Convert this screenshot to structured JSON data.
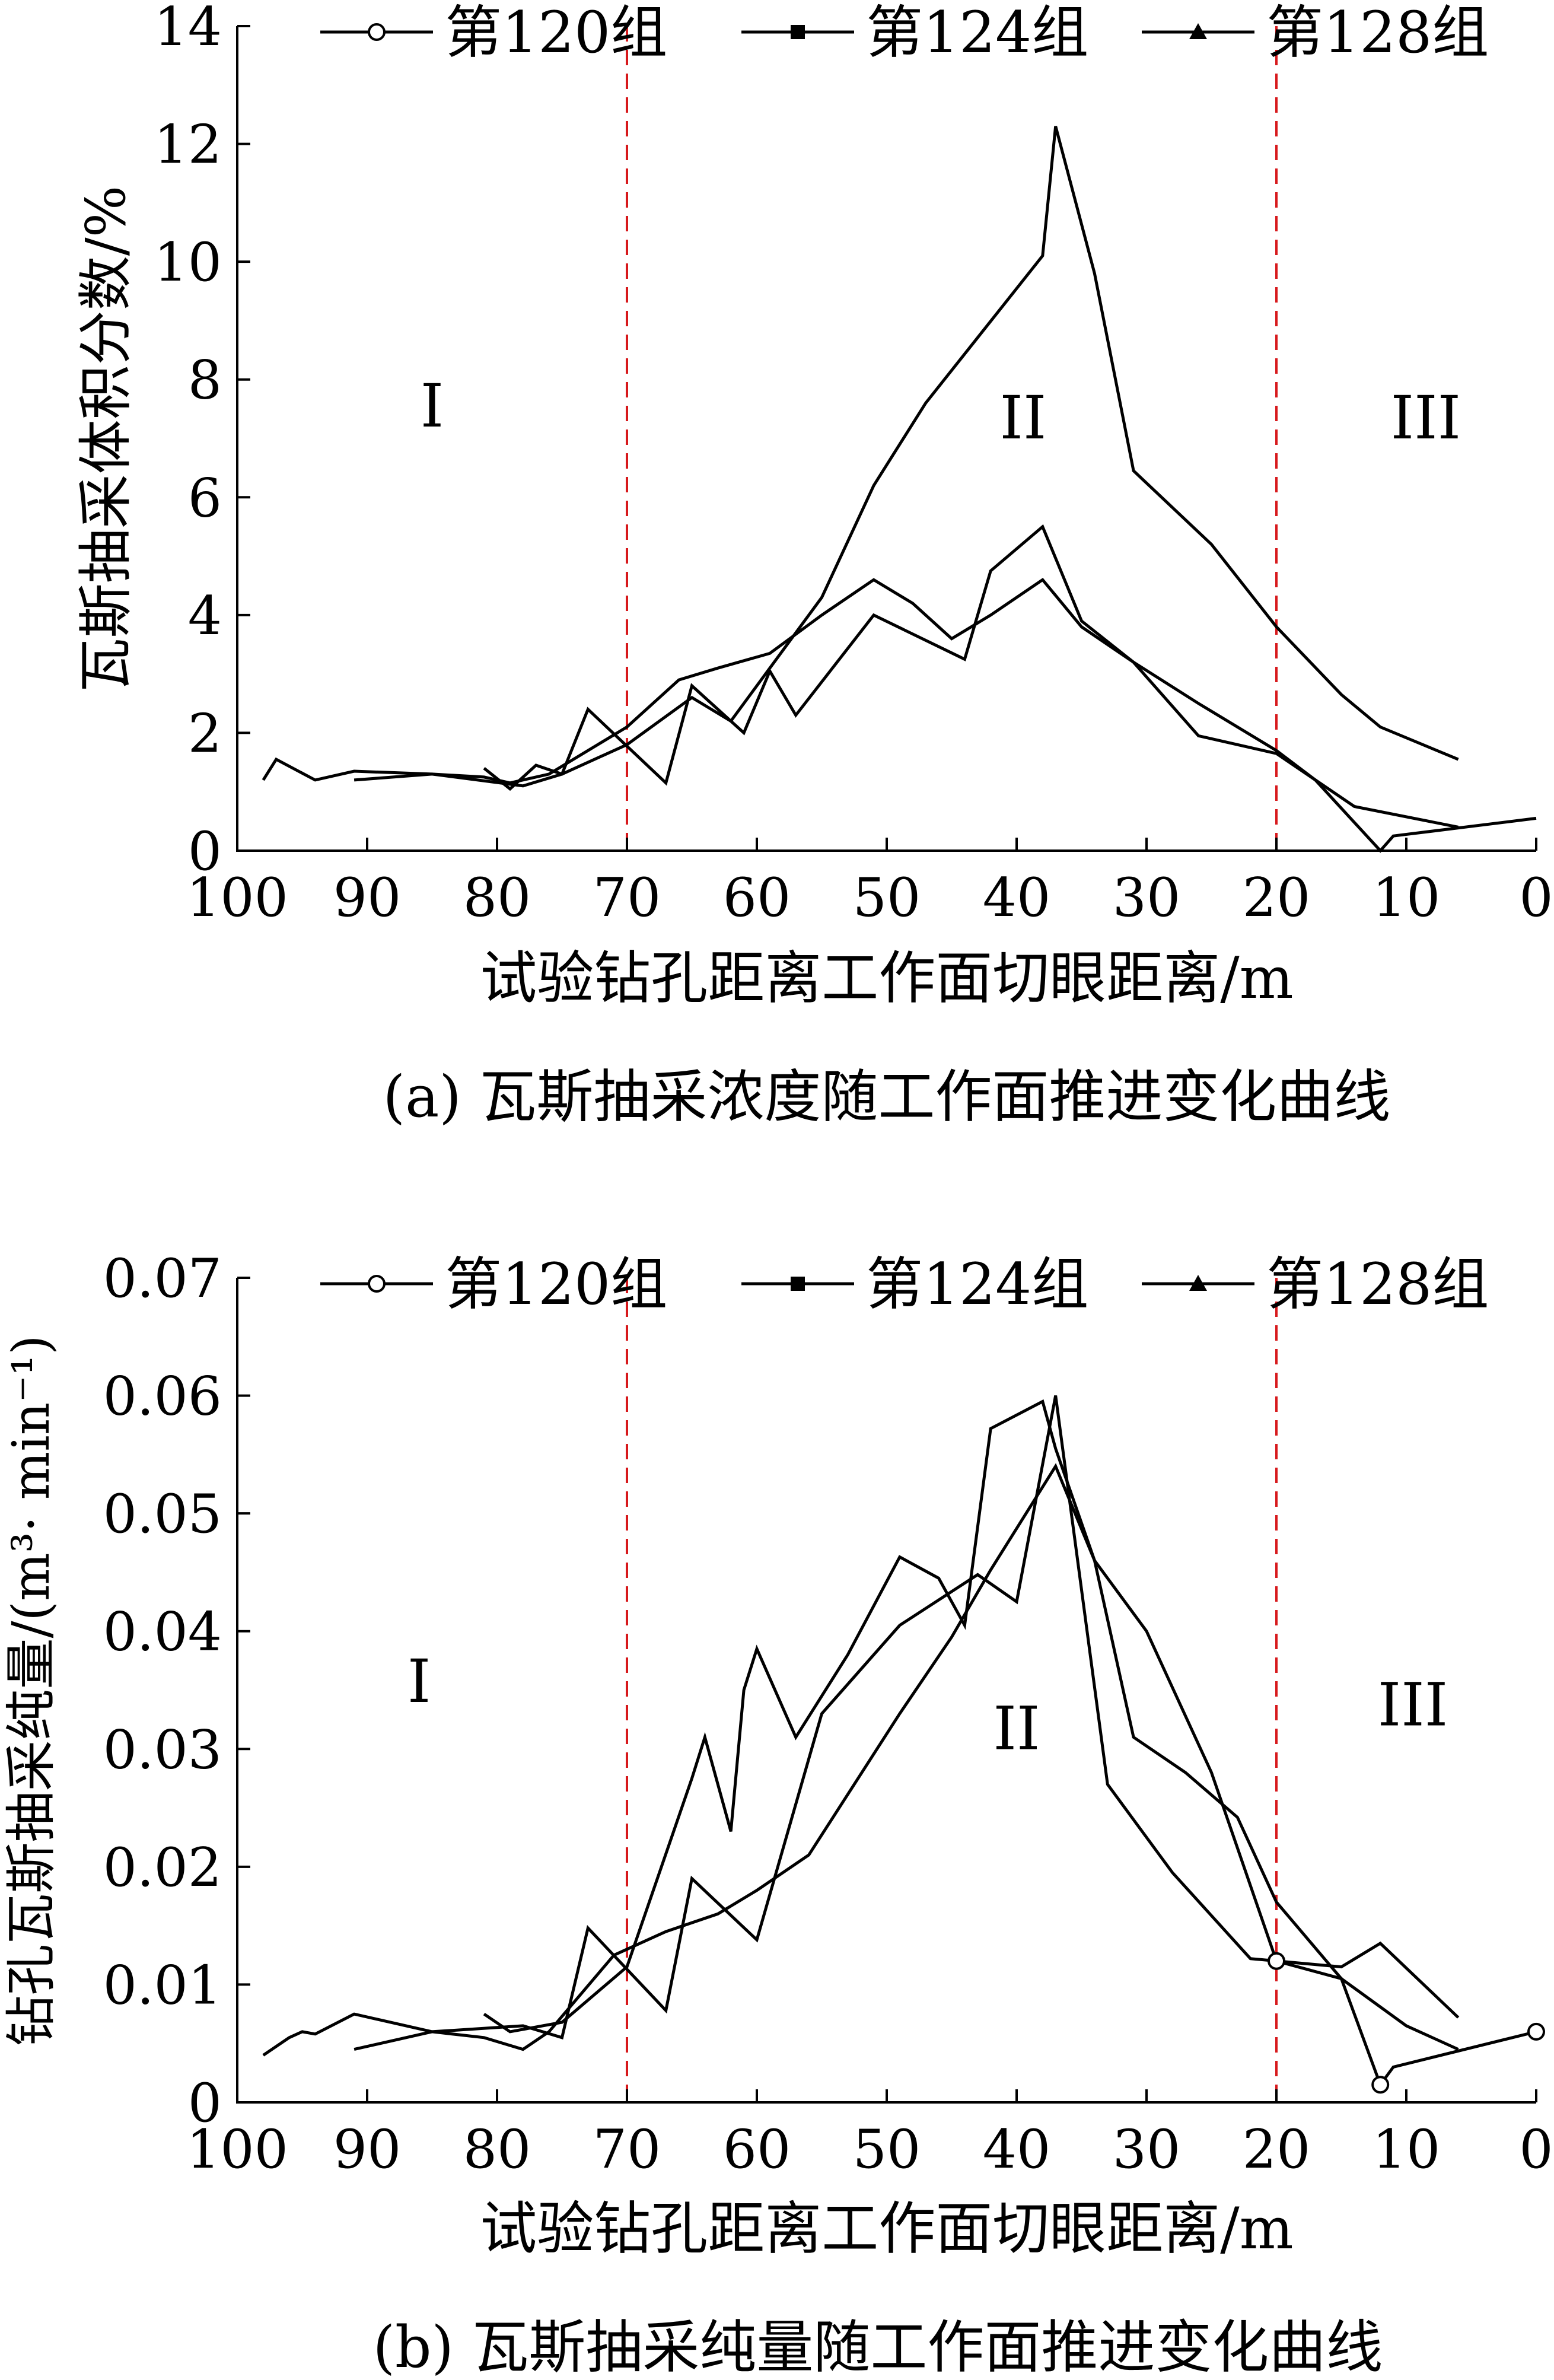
{
  "chart_data": [
    {
      "type": "line",
      "caption": "(a)  瓦斯抽采浓度随工作面推进变化曲线",
      "xlabel": "试验钻孔距离工作面切眼距离/m",
      "ylabel": "瓦斯抽采体积分数/%",
      "xlim": [
        100,
        0
      ],
      "ylim": [
        0,
        14
      ],
      "xticks": [
        100,
        90,
        80,
        70,
        60,
        50,
        40,
        30,
        20,
        10,
        0
      ],
      "yticks": [
        0,
        2,
        4,
        6,
        8,
        10,
        12,
        14
      ],
      "x_tick_labels": [
        "100",
        "90",
        "80",
        "70",
        "60",
        "50",
        "40",
        "30",
        "20",
        "10",
        "0"
      ],
      "y_tick_labels": [
        "0",
        "2",
        "4",
        "6",
        "8",
        "10",
        "12",
        "14"
      ],
      "vlines": [
        70,
        20
      ],
      "vline_color": "#d7191c",
      "zones": [
        {
          "label": "I",
          "x": 85,
          "y": 7.2
        },
        {
          "label": "II",
          "x": 39.5,
          "y": 7.0
        },
        {
          "label": "III",
          "x": 8.5,
          "y": 7.0
        }
      ],
      "legend_position": "top",
      "series": [
        {
          "name": "第120组",
          "marker": "circle",
          "x": [
            98,
            97,
            94,
            91,
            85,
            81,
            79,
            76,
            70,
            66,
            63,
            59,
            55,
            51,
            48,
            45,
            42,
            38,
            35,
            31,
            26,
            20,
            17,
            12,
            11,
            0
          ],
          "y": [
            1.2,
            1.55,
            1.2,
            1.35,
            1.3,
            1.25,
            1.15,
            1.3,
            2.1,
            2.9,
            3.1,
            3.35,
            4.0,
            4.6,
            4.2,
            3.6,
            4.0,
            4.6,
            3.8,
            3.2,
            2.5,
            1.7,
            1.2,
            0.0,
            0.25,
            0.55
          ]
        },
        {
          "name": "第124组",
          "marker": "square",
          "x": [
            91,
            85,
            78,
            75,
            73,
            67,
            65,
            61,
            59,
            57,
            51,
            44,
            42,
            38,
            35,
            31,
            26,
            20,
            14,
            6
          ],
          "y": [
            1.2,
            1.3,
            1.1,
            1.3,
            2.4,
            1.15,
            2.8,
            2.0,
            3.05,
            2.3,
            4.0,
            3.25,
            4.75,
            5.5,
            3.9,
            3.2,
            1.95,
            1.65,
            0.75,
            0.4
          ]
        },
        {
          "name": "第128组",
          "marker": "triangle",
          "x": [
            81,
            79,
            77,
            75,
            70,
            65,
            62,
            55,
            51,
            47,
            38,
            37,
            34,
            31,
            25,
            20,
            15,
            12,
            6
          ],
          "y": [
            1.4,
            1.05,
            1.45,
            1.3,
            1.8,
            2.6,
            2.2,
            4.3,
            6.2,
            7.6,
            10.1,
            12.3,
            9.8,
            6.45,
            5.2,
            3.8,
            2.65,
            2.1,
            1.55
          ]
        }
      ]
    },
    {
      "type": "line",
      "caption": "(b) 瓦斯抽采纯量随工作面推进变化曲线",
      "xlabel": "试验钻孔距离工作面切眼距离/m",
      "ylabel": "钻孔瓦斯抽采纯量/(m³· min⁻¹)",
      "xlim": [
        100,
        0
      ],
      "ylim": [
        0,
        0.07
      ],
      "xticks": [
        100,
        90,
        80,
        70,
        60,
        50,
        40,
        30,
        20,
        10,
        0
      ],
      "yticks": [
        0,
        0.01,
        0.02,
        0.03,
        0.04,
        0.05,
        0.06,
        0.07
      ],
      "x_tick_labels": [
        "100",
        "90",
        "80",
        "70",
        "60",
        "50",
        "40",
        "30",
        "20",
        "10",
        "0"
      ],
      "y_tick_labels": [
        "0",
        "0.01",
        "0.02",
        "0.03",
        "0.04",
        "0.05",
        "0.06",
        "0.07"
      ],
      "vlines": [
        70,
        20
      ],
      "vline_color": "#d7191c",
      "zones": [
        {
          "label": "I",
          "x": 86,
          "y": 0.034
        },
        {
          "label": "II",
          "x": 40,
          "y": 0.03
        },
        {
          "label": "III",
          "x": 9.5,
          "y": 0.032
        }
      ],
      "legend_position": "top",
      "series": [
        {
          "name": "第120组",
          "marker": "circle",
          "x": [
            98,
            96,
            95,
            94,
            91,
            85,
            81,
            78,
            76,
            71,
            67,
            63,
            60,
            56,
            49,
            45,
            42,
            37,
            34,
            30,
            25,
            20,
            15,
            12,
            11,
            0
          ],
          "y": [
            0.004,
            0.0055,
            0.006,
            0.0058,
            0.0075,
            0.006,
            0.0055,
            0.0045,
            0.006,
            0.0125,
            0.0145,
            0.016,
            0.018,
            0.021,
            0.033,
            0.0395,
            0.0452,
            0.054,
            0.046,
            0.04,
            0.028,
            0.012,
            0.0105,
            0.0015,
            0.003,
            0.006
          ]
        },
        {
          "name": "第124组",
          "marker": "square",
          "x": [
            91,
            85,
            78,
            75,
            73,
            67,
            65,
            60,
            55,
            49,
            43,
            40,
            37,
            33,
            28,
            22,
            15,
            12,
            6
          ],
          "y": [
            0.0045,
            0.006,
            0.0065,
            0.0055,
            0.0148,
            0.0078,
            0.019,
            0.0138,
            0.033,
            0.0405,
            0.0448,
            0.0425,
            0.06,
            0.027,
            0.0195,
            0.0122,
            0.0115,
            0.0135,
            0.0072
          ]
        },
        {
          "name": "第128组",
          "marker": "triangle",
          "x": [
            81,
            79,
            75,
            70,
            65,
            64,
            62,
            61,
            60,
            57,
            53,
            49,
            46,
            44,
            42,
            38,
            37,
            34,
            31,
            27,
            23,
            20,
            15,
            10,
            6
          ],
          "y": [
            0.0075,
            0.006,
            0.0068,
            0.0115,
            0.0275,
            0.031,
            0.023,
            0.035,
            0.0385,
            0.031,
            0.038,
            0.0463,
            0.0445,
            0.0405,
            0.0572,
            0.0595,
            0.0555,
            0.046,
            0.031,
            0.028,
            0.0242,
            0.017,
            0.0105,
            0.0065,
            0.0045
          ]
        }
      ]
    }
  ]
}
